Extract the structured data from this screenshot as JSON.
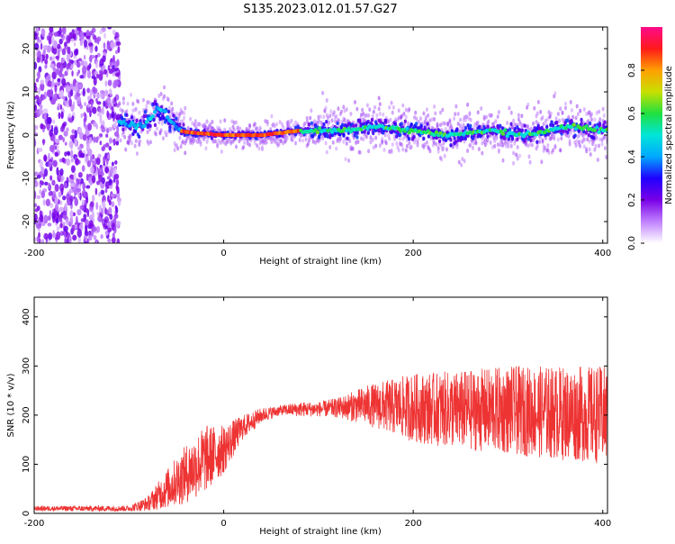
{
  "title": "S135.2023.012.01.57.G27",
  "colorbar": {
    "label": "Normalized spectral amplitude",
    "ticks": [
      0.0,
      0.2,
      0.4,
      0.6,
      0.8
    ],
    "tick_labels": [
      "0.0",
      "0.2",
      "0.4",
      "0.6",
      "0.8"
    ],
    "colormap": [
      "#ffffff",
      "#c080ff",
      "#7a00e6",
      "#2000ff",
      "#00a8ff",
      "#00e5d8",
      "#20e040",
      "#c8e000",
      "#ffa000",
      "#ff1a1a",
      "#ff0a8c"
    ]
  },
  "chart_data": [
    {
      "type": "heatmap",
      "title": "S135.2023.012.01.57.G27",
      "xlabel": "Height of straight line (km)",
      "ylabel": "Frequency (Hz)",
      "xlim": [
        -200,
        405
      ],
      "ylim": [
        -25,
        25
      ],
      "x_ticks": [
        -200,
        0,
        200,
        400
      ],
      "y_ticks": [
        -20,
        -10,
        0,
        10,
        20
      ],
      "x_tick_labels": [
        "-200",
        "0",
        "200",
        "400"
      ],
      "y_tick_labels": [
        "-20",
        "-10",
        "0",
        "10",
        "20"
      ],
      "grid": false,
      "noise_region_x": [
        -200,
        -110
      ],
      "ridge": [
        {
          "x": -110,
          "y": 3
        },
        {
          "x": -90,
          "y": 2
        },
        {
          "x": -80,
          "y": 3
        },
        {
          "x": -70,
          "y": 6
        },
        {
          "x": -62,
          "y": 5
        },
        {
          "x": -55,
          "y": 3
        },
        {
          "x": -45,
          "y": 1
        },
        {
          "x": -30,
          "y": 0.5
        },
        {
          "x": 0,
          "y": 0
        },
        {
          "x": 40,
          "y": 0
        },
        {
          "x": 80,
          "y": 1
        },
        {
          "x": 120,
          "y": 1
        },
        {
          "x": 160,
          "y": 2
        },
        {
          "x": 200,
          "y": 1
        },
        {
          "x": 240,
          "y": 0
        },
        {
          "x": 280,
          "y": 1
        },
        {
          "x": 320,
          "y": 0
        },
        {
          "x": 360,
          "y": 2
        },
        {
          "x": 405,
          "y": 1
        }
      ]
    },
    {
      "type": "line",
      "xlabel": "Height of straight line (km)",
      "ylabel": "SNR (10 * v/v)",
      "xlim": [
        -200,
        405
      ],
      "ylim": [
        0,
        440
      ],
      "x_ticks": [
        -200,
        0,
        200,
        400
      ],
      "y_ticks": [
        0,
        100,
        200,
        300,
        400
      ],
      "x_tick_labels": [
        "-200",
        "0",
        "200",
        "400"
      ],
      "y_tick_labels": [
        "0",
        "100",
        "200",
        "300",
        "400"
      ],
      "grid": false,
      "series_color": "#ee3333",
      "envelope": [
        {
          "x": -200,
          "mean": 10,
          "spread": 5
        },
        {
          "x": -100,
          "mean": 10,
          "spread": 6
        },
        {
          "x": -80,
          "mean": 20,
          "spread": 15
        },
        {
          "x": -60,
          "mean": 50,
          "spread": 40
        },
        {
          "x": -40,
          "mean": 80,
          "spread": 60
        },
        {
          "x": -20,
          "mean": 110,
          "spread": 70
        },
        {
          "x": 0,
          "mean": 130,
          "spread": 50
        },
        {
          "x": 20,
          "mean": 175,
          "spread": 25
        },
        {
          "x": 40,
          "mean": 200,
          "spread": 15
        },
        {
          "x": 60,
          "mean": 210,
          "spread": 10
        },
        {
          "x": 80,
          "mean": 212,
          "spread": 15
        },
        {
          "x": 100,
          "mean": 212,
          "spread": 15
        },
        {
          "x": 120,
          "mean": 215,
          "spread": 20
        },
        {
          "x": 150,
          "mean": 220,
          "spread": 40
        },
        {
          "x": 200,
          "mean": 215,
          "spread": 70
        },
        {
          "x": 250,
          "mean": 210,
          "spread": 80
        },
        {
          "x": 300,
          "mean": 210,
          "spread": 90
        },
        {
          "x": 350,
          "mean": 205,
          "spread": 95
        },
        {
          "x": 405,
          "mean": 200,
          "spread": 100
        }
      ]
    }
  ]
}
